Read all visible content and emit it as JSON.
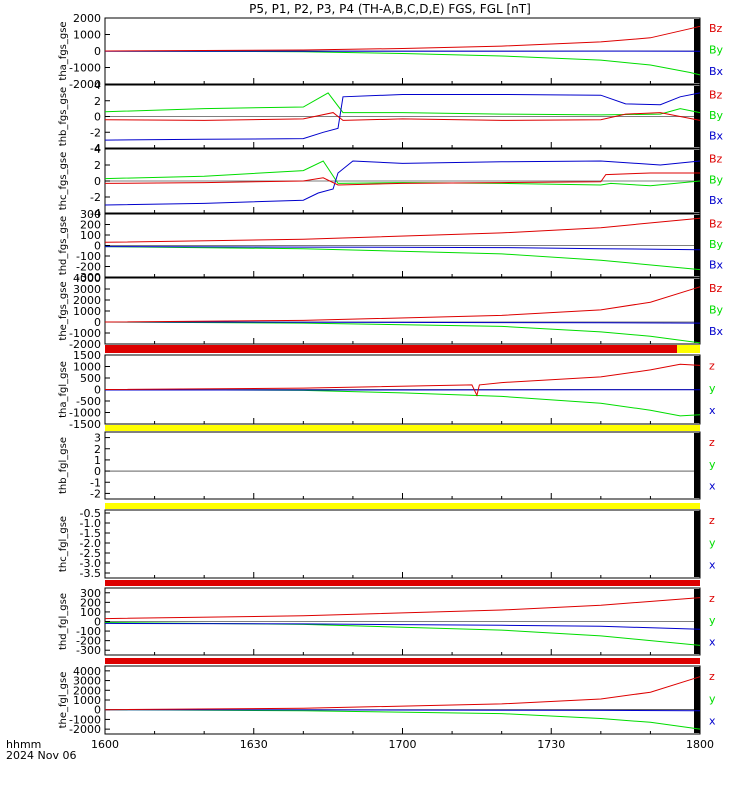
{
  "title": "P5, P1, P2, P3, P4 (TH-A,B,C,D,E) FGS, FGL [nT]",
  "footer": {
    "line1": "hhmm",
    "line2": "2024 Nov 06"
  },
  "colors": {
    "red": "#dd0000",
    "green": "#00dd00",
    "blue": "#0000cc",
    "yellow": "#ffff00",
    "black": "#000000"
  },
  "chart_data": {
    "type": "line",
    "x_axis": {
      "ticks": [
        "1600",
        "1630",
        "1700",
        "1730",
        "1800"
      ],
      "range_minutes": [
        0,
        120
      ]
    },
    "panels": [
      {
        "ylabel": "tha_fgs_gse",
        "ylim": [
          -2000,
          2000
        ],
        "yticks": [
          "2000",
          "1000",
          "0",
          "-1000",
          "-2000"
        ],
        "legend": [
          "Bz",
          "By",
          "Bx"
        ],
        "bar": null,
        "series": {
          "z": [
            [
              0,
              0
            ],
            [
              40,
              60
            ],
            [
              60,
              150
            ],
            [
              80,
              300
            ],
            [
              100,
              550
            ],
            [
              110,
              800
            ],
            [
              118,
              1350
            ],
            [
              120,
              1500
            ]
          ],
          "y": [
            [
              0,
              0
            ],
            [
              40,
              -40
            ],
            [
              60,
              -150
            ],
            [
              80,
              -300
            ],
            [
              100,
              -550
            ],
            [
              110,
              -850
            ],
            [
              118,
              -1300
            ],
            [
              120,
              -1450
            ]
          ],
          "x": [
            [
              0,
              -20
            ],
            [
              40,
              -20
            ],
            [
              60,
              -10
            ],
            [
              80,
              -10
            ],
            [
              100,
              -5
            ],
            [
              118,
              -10
            ],
            [
              120,
              -10
            ]
          ]
        }
      },
      {
        "ylabel": "thb_fgs_gse",
        "ylim": [
          -4,
          4
        ],
        "yticks": [
          "4",
          "2",
          "0",
          "-2",
          "-4"
        ],
        "legend": [
          "Bz",
          "By",
          "Bx"
        ],
        "bar": null,
        "series": {
          "z": [
            [
              0,
              -0.4
            ],
            [
              20,
              -0.5
            ],
            [
              40,
              -0.3
            ],
            [
              46,
              0.5
            ],
            [
              48,
              -0.5
            ],
            [
              60,
              -0.3
            ],
            [
              80,
              -0.5
            ],
            [
              100,
              -0.4
            ],
            [
              105,
              0.3
            ],
            [
              112,
              0.5
            ],
            [
              120,
              -0.5
            ]
          ],
          "y": [
            [
              0,
              0.6
            ],
            [
              20,
              1.0
            ],
            [
              40,
              1.2
            ],
            [
              45,
              3.0
            ],
            [
              48,
              0.5
            ],
            [
              60,
              0.5
            ],
            [
              80,
              0.3
            ],
            [
              100,
              0.2
            ],
            [
              112,
              0.3
            ],
            [
              116,
              1.0
            ],
            [
              120,
              0.5
            ]
          ],
          "x": [
            [
              0,
              -3.0
            ],
            [
              20,
              -2.9
            ],
            [
              40,
              -2.8
            ],
            [
              44,
              -2.0
            ],
            [
              47,
              -1.5
            ],
            [
              48,
              2.5
            ],
            [
              60,
              2.8
            ],
            [
              80,
              2.8
            ],
            [
              100,
              2.7
            ],
            [
              105,
              1.6
            ],
            [
              112,
              1.5
            ],
            [
              116,
              2.5
            ],
            [
              120,
              3.0
            ]
          ]
        }
      },
      {
        "ylabel": "thc_fgs_gse",
        "ylim": [
          -4,
          4
        ],
        "yticks": [
          "4",
          "2",
          "0",
          "-2",
          "-4"
        ],
        "legend": [
          "Bz",
          "By",
          "Bx"
        ],
        "bar": null,
        "series": {
          "z": [
            [
              0,
              -0.3
            ],
            [
              20,
              -0.2
            ],
            [
              40,
              0.0
            ],
            [
              44,
              0.4
            ],
            [
              47,
              -0.5
            ],
            [
              60,
              -0.3
            ],
            [
              80,
              -0.2
            ],
            [
              100,
              -0.1
            ],
            [
              101,
              0.8
            ],
            [
              110,
              1.0
            ],
            [
              120,
              1.0
            ]
          ],
          "y": [
            [
              0,
              0.3
            ],
            [
              20,
              0.6
            ],
            [
              40,
              1.3
            ],
            [
              44,
              2.5
            ],
            [
              47,
              -0.3
            ],
            [
              60,
              -0.2
            ],
            [
              80,
              -0.3
            ],
            [
              100,
              -0.5
            ],
            [
              102,
              -0.3
            ],
            [
              110,
              -0.6
            ],
            [
              120,
              0.0
            ]
          ],
          "x": [
            [
              0,
              -3.0
            ],
            [
              20,
              -2.8
            ],
            [
              40,
              -2.4
            ],
            [
              43,
              -1.5
            ],
            [
              46,
              -1.0
            ],
            [
              47,
              1.0
            ],
            [
              50,
              2.5
            ],
            [
              60,
              2.2
            ],
            [
              80,
              2.4
            ],
            [
              100,
              2.5
            ],
            [
              112,
              2.0
            ],
            [
              120,
              2.5
            ]
          ]
        }
      },
      {
        "ylabel": "thd_fgs_gse",
        "ylim": [
          -300,
          300
        ],
        "yticks": [
          "300",
          "200",
          "100",
          "0",
          "-100",
          "-200",
          "-300"
        ],
        "legend": [
          "Bz",
          "By",
          "Bx"
        ],
        "bar": null,
        "series": {
          "z": [
            [
              0,
              30
            ],
            [
              40,
              60
            ],
            [
              80,
              120
            ],
            [
              100,
              170
            ],
            [
              120,
              260
            ]
          ],
          "y": [
            [
              0,
              -10
            ],
            [
              40,
              -30
            ],
            [
              80,
              -80
            ],
            [
              100,
              -140
            ],
            [
              120,
              -230
            ]
          ],
          "x": [
            [
              0,
              -10
            ],
            [
              40,
              -15
            ],
            [
              80,
              -20
            ],
            [
              100,
              -30
            ],
            [
              120,
              -40
            ]
          ]
        }
      },
      {
        "ylabel": "the_fgs_gse",
        "ylim": [
          -2000,
          4000
        ],
        "yticks": [
          "4000",
          "3000",
          "2000",
          "1000",
          "0",
          "-1000",
          "-2000"
        ],
        "legend": [
          "Bz",
          "By",
          "Bx"
        ],
        "bar": null,
        "series": {
          "z": [
            [
              0,
              0
            ],
            [
              40,
              150
            ],
            [
              80,
              600
            ],
            [
              100,
              1100
            ],
            [
              110,
              1800
            ],
            [
              120,
              3200
            ]
          ],
          "y": [
            [
              0,
              0
            ],
            [
              40,
              -100
            ],
            [
              80,
              -400
            ],
            [
              100,
              -900
            ],
            [
              110,
              -1300
            ],
            [
              120,
              -1900
            ]
          ],
          "x": [
            [
              0,
              0
            ],
            [
              40,
              -20
            ],
            [
              80,
              -50
            ],
            [
              100,
              -70
            ],
            [
              120,
              -100
            ]
          ]
        }
      },
      {
        "ylabel": "tha_fgl_gse",
        "ylim": [
          -1500,
          1500
        ],
        "yticks": [
          "1500",
          "1000",
          "500",
          "0",
          "-500",
          "-1000",
          "-1500"
        ],
        "legend": [
          "z",
          "y",
          "x"
        ],
        "bar": "red-yellow",
        "series": {
          "z": [
            [
              0,
              0
            ],
            [
              40,
              60
            ],
            [
              74,
              200
            ],
            [
              75,
              -250
            ],
            [
              75.5,
              200
            ],
            [
              80,
              300
            ],
            [
              100,
              550
            ],
            [
              110,
              850
            ],
            [
              116,
              1100
            ],
            [
              120,
              1050
            ]
          ],
          "y": [
            [
              0,
              0
            ],
            [
              40,
              -40
            ],
            [
              60,
              -150
            ],
            [
              80,
              -300
            ],
            [
              100,
              -600
            ],
            [
              110,
              -900
            ],
            [
              116,
              -1150
            ],
            [
              120,
              -1100
            ]
          ],
          "x": [
            [
              0,
              -20
            ],
            [
              60,
              -20
            ],
            [
              100,
              -15
            ],
            [
              120,
              -10
            ]
          ]
        }
      },
      {
        "ylabel": "thb_fgl_gse",
        "ylim": [
          -2.5,
          3.5
        ],
        "yticks": [
          "3",
          "2",
          "1",
          "0",
          "-1",
          "-2"
        ],
        "legend": [
          "z",
          "y",
          "x"
        ],
        "bar": "yellow",
        "series": null
      },
      {
        "ylabel": "thc_fgl_gse",
        "ylim": [
          -3.75,
          -0.35
        ],
        "yticks": [
          "-0.5",
          "-1.0",
          "-1.5",
          "-2.0",
          "-2.5",
          "-3.0",
          "-3.5"
        ],
        "legend": [
          "z",
          "y",
          "x"
        ],
        "bar": "yellow",
        "series": null
      },
      {
        "ylabel": "thd_fgl_gse",
        "ylim": [
          -350,
          350
        ],
        "yticks": [
          "300",
          "200",
          "100",
          "0",
          "-100",
          "-200",
          "-300"
        ],
        "legend": [
          "z",
          "y",
          "x"
        ],
        "bar": "red",
        "series": {
          "z": [
            [
              0,
              30
            ],
            [
              40,
              60
            ],
            [
              80,
              120
            ],
            [
              100,
              170
            ],
            [
              120,
              250
            ]
          ],
          "y": [
            [
              0,
              -10
            ],
            [
              40,
              -30
            ],
            [
              80,
              -90
            ],
            [
              100,
              -150
            ],
            [
              120,
              -250
            ]
          ],
          "x": [
            [
              0,
              -20
            ],
            [
              40,
              -25
            ],
            [
              80,
              -40
            ],
            [
              100,
              -50
            ],
            [
              120,
              -80
            ]
          ]
        }
      },
      {
        "ylabel": "the_fgl_gse",
        "ylim": [
          -2500,
          4500
        ],
        "yticks": [
          "4000",
          "3000",
          "2000",
          "1000",
          "0",
          "-1000",
          "-2000"
        ],
        "legend": [
          "z",
          "y",
          "x"
        ],
        "bar": "red",
        "series": {
          "z": [
            [
              0,
              0
            ],
            [
              40,
              150
            ],
            [
              80,
              600
            ],
            [
              100,
              1100
            ],
            [
              110,
              1800
            ],
            [
              120,
              3400
            ]
          ],
          "y": [
            [
              0,
              0
            ],
            [
              40,
              -100
            ],
            [
              80,
              -400
            ],
            [
              100,
              -900
            ],
            [
              110,
              -1300
            ],
            [
              120,
              -2000
            ]
          ],
          "x": [
            [
              0,
              0
            ],
            [
              40,
              -20
            ],
            [
              80,
              -50
            ],
            [
              100,
              -70
            ],
            [
              120,
              -100
            ]
          ]
        }
      }
    ]
  }
}
